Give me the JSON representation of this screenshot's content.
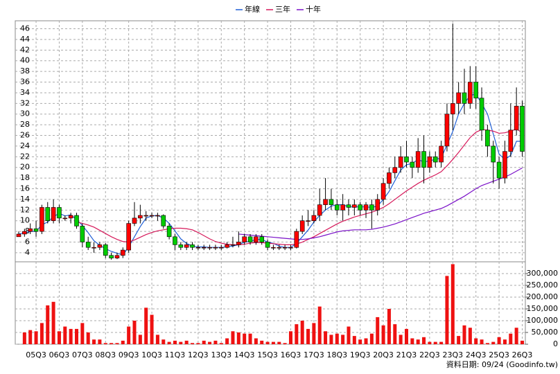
{
  "chart_data": {
    "type": "candlestick",
    "categories": [
      null,
      null,
      null,
      "05Q3",
      null,
      null,
      null,
      "06Q3",
      null,
      null,
      null,
      "07Q3",
      null,
      null,
      null,
      "08Q3",
      null,
      null,
      null,
      "09Q3",
      null,
      null,
      null,
      "10Q3",
      null,
      null,
      null,
      "11Q3",
      null,
      null,
      null,
      "12Q3",
      null,
      null,
      null,
      "13Q3",
      null,
      null,
      null,
      "14Q3",
      null,
      null,
      null,
      "15Q3",
      null,
      null,
      null,
      "16Q3",
      null,
      null,
      null,
      "17Q3",
      null,
      null,
      null,
      "18Q3",
      null,
      null,
      null,
      "19Q3",
      null,
      null,
      null,
      "20Q3",
      null,
      null,
      null,
      "21Q3",
      null,
      null,
      null,
      "22Q3",
      null,
      null,
      null,
      "23Q3",
      null,
      null,
      null,
      "24Q3",
      null,
      null,
      null,
      "25Q3",
      null,
      null,
      null,
      "26Q3"
    ],
    "open": [
      7,
      7.5,
      8,
      8.5,
      8,
      12.5,
      10,
      12.5,
      10.5,
      10.5,
      11,
      9,
      6,
      5,
      5,
      5.5,
      3.5,
      3,
      3.5,
      4.5,
      9.5,
      10.5,
      11,
      11,
      11,
      11,
      9,
      7,
      5.5,
      5,
      5.5,
      5,
      5,
      5,
      5,
      5,
      5,
      5.5,
      5.5,
      6,
      7,
      6,
      7,
      6,
      5,
      5,
      5,
      5,
      5,
      8,
      10,
      10,
      11,
      13,
      14,
      13,
      12,
      13,
      12.5,
      13,
      12,
      13,
      12,
      14,
      17,
      19,
      20,
      22,
      21,
      20,
      23,
      20,
      22,
      21,
      24,
      30,
      32,
      34,
      32,
      36,
      33,
      27,
      24,
      21,
      18,
      23,
      27,
      31.5
    ],
    "high": [
      8,
      8.5,
      9.5,
      10,
      13,
      13.5,
      14,
      13,
      11,
      11.5,
      11.5,
      9.5,
      7,
      6,
      6,
      5.8,
      4,
      4,
      5,
      10,
      13.5,
      13,
      11.8,
      11.5,
      11.5,
      11.2,
      9.5,
      7.5,
      6,
      6,
      6,
      5.5,
      5.5,
      5.5,
      5.5,
      5.5,
      6,
      7,
      8,
      7.5,
      7.5,
      7.5,
      7.5,
      6.5,
      5.5,
      5.5,
      5.5,
      5.5,
      8.5,
      11,
      12,
      12,
      16,
      18,
      16,
      14,
      15,
      14,
      14,
      13.5,
      13.5,
      14,
      15,
      18,
      20,
      22,
      24,
      25,
      22,
      25.5,
      26,
      23,
      23,
      25,
      32,
      47,
      36,
      38.5,
      39,
      39,
      35,
      28,
      25,
      22,
      25,
      32,
      35,
      32.5
    ],
    "low": [
      7,
      7,
      7.5,
      7,
      7.5,
      9.5,
      9.5,
      9.5,
      10,
      9.5,
      8.5,
      5,
      4.5,
      4,
      4.5,
      3,
      2.7,
      2.8,
      3,
      4,
      9,
      9.5,
      10,
      10.5,
      10,
      8.5,
      6.5,
      4.5,
      4.5,
      4.5,
      4.5,
      4.5,
      4.5,
      4.5,
      4.5,
      4.5,
      4.8,
      5,
      5,
      5.5,
      5.5,
      5.5,
      5.5,
      4.5,
      4.5,
      4.5,
      4.5,
      4.5,
      4.8,
      7.5,
      9,
      9.5,
      10,
      12,
      12,
      11,
      10,
      11,
      11,
      11,
      10.5,
      8.5,
      11,
      13,
      16,
      18,
      19,
      20,
      18,
      19,
      17,
      19,
      20,
      20,
      23,
      27,
      30,
      30,
      31,
      31,
      25,
      22,
      17,
      16,
      17,
      22,
      26,
      22
    ],
    "close": [
      7.5,
      8,
      8.5,
      8,
      12.5,
      10,
      12.5,
      10.5,
      10.5,
      11,
      9,
      6,
      5,
      5,
      5.5,
      3.5,
      3,
      3.5,
      4.5,
      9.5,
      10.5,
      11,
      11,
      11,
      11,
      9,
      7,
      5.5,
      5,
      5.5,
      5,
      5,
      5,
      5,
      5,
      5,
      5.5,
      5.5,
      6,
      7,
      6,
      7,
      6,
      5,
      5,
      5,
      5,
      5,
      8,
      10,
      10,
      11,
      13,
      14,
      13,
      12,
      13,
      12.5,
      13,
      12,
      13,
      12,
      14,
      17,
      19,
      20,
      22,
      21,
      20,
      23,
      20,
      22,
      21,
      24,
      30,
      32,
      34,
      32,
      36,
      33,
      27,
      24,
      21,
      18,
      23,
      27,
      31.5,
      23
    ],
    "up_color": "#ff0000",
    "down_color": "#00cc00",
    "ylim": [
      2.3,
      47.5
    ],
    "yticks": [
      4,
      6,
      8,
      10,
      12,
      14,
      16,
      18,
      20,
      22,
      24,
      26,
      28,
      30,
      32,
      34,
      36,
      38,
      40,
      42,
      44,
      46
    ],
    "grid": true,
    "series": [
      {
        "name": "年線",
        "color": "#1f5fd6",
        "values": [
          7.5,
          7.75,
          8,
          8,
          9.25,
          9.75,
          10.75,
          11.4,
          10.9,
          11.1,
          10.25,
          9.1,
          7.75,
          6.25,
          5.4,
          4.75,
          4.25,
          3.9,
          3.6,
          5.1,
          7,
          8.9,
          10.5,
          10.9,
          11,
          10.5,
          9.5,
          8.1,
          6.6,
          5.75,
          5.25,
          5.1,
          5.1,
          5,
          5,
          5,
          5.1,
          5.25,
          5.5,
          6,
          6.1,
          6.5,
          6.5,
          6,
          5.75,
          5.25,
          5,
          5,
          5.75,
          7,
          8.25,
          9.75,
          11,
          12,
          12.75,
          13,
          13,
          12.6,
          12.6,
          12.6,
          12.6,
          12.5,
          12.75,
          14,
          15.5,
          17.5,
          19.5,
          20.5,
          20.75,
          21.5,
          21,
          21.25,
          21.5,
          21.75,
          24.25,
          26.75,
          30,
          32,
          33.5,
          33.75,
          32,
          30,
          26.25,
          22.5,
          21.5,
          22.25,
          24.9,
          24.9
        ]
      },
      {
        "name": "三年",
        "color": "#d6195a",
        "values": [
          null,
          null,
          null,
          null,
          null,
          null,
          null,
          null,
          null,
          null,
          9.8,
          9.5,
          9.2,
          8.8,
          8.2,
          7.6,
          7,
          6.5,
          6.1,
          6,
          6.4,
          6.9,
          7.4,
          7.8,
          8.1,
          8.3,
          8.5,
          8.6,
          8.6,
          8.5,
          8.3,
          7.8,
          7.2,
          6.6,
          6.1,
          5.8,
          5.6,
          5.5,
          5.5,
          5.6,
          5.8,
          5.9,
          5.9,
          5.8,
          5.7,
          5.6,
          5.5,
          5.5,
          5.6,
          6,
          6.5,
          7,
          7.6,
          8.2,
          8.8,
          9.4,
          9.9,
          10.3,
          10.7,
          11,
          11.3,
          11.6,
          12,
          12.5,
          13.2,
          14,
          14.8,
          15.6,
          16.3,
          17,
          17.6,
          18.1,
          18.6,
          19.2,
          20.3,
          21.5,
          22.8,
          24.2,
          25.6,
          26.6,
          27.1,
          27,
          26.8,
          26.4,
          26.5,
          26.8,
          27.2,
          26.5
        ]
      },
      {
        "name": "十年",
        "color": "#7a10c8",
        "values": [
          null,
          null,
          null,
          null,
          null,
          null,
          null,
          null,
          null,
          null,
          null,
          null,
          null,
          null,
          null,
          null,
          null,
          null,
          null,
          null,
          null,
          null,
          null,
          null,
          null,
          null,
          null,
          null,
          null,
          null,
          null,
          null,
          null,
          null,
          null,
          null,
          null,
          null,
          7.5,
          7.4,
          7.3,
          7.2,
          7.1,
          7,
          6.9,
          6.8,
          6.7,
          6.6,
          6.5,
          6.5,
          6.6,
          6.8,
          7,
          7.3,
          7.6,
          7.9,
          8.1,
          8.2,
          8.3,
          8.3,
          8.3,
          8.4,
          8.6,
          8.8,
          9.1,
          9.4,
          9.8,
          10.2,
          10.6,
          11,
          11.4,
          11.7,
          12,
          12.3,
          12.8,
          13.4,
          14,
          14.6,
          15.3,
          16,
          16.6,
          17,
          17.4,
          17.8,
          18.2,
          18.7,
          19.3,
          19.9
        ]
      }
    ],
    "volume": {
      "color": "#ee1111",
      "values": [
        0,
        50000,
        60000,
        55000,
        90000,
        165000,
        180000,
        55000,
        75000,
        65000,
        65000,
        90000,
        50000,
        20000,
        20000,
        5000,
        5000,
        5000,
        15000,
        75000,
        100000,
        40000,
        155000,
        125000,
        40000,
        20000,
        10000,
        15000,
        10000,
        15000,
        5000,
        5000,
        15000,
        10000,
        15000,
        5000,
        25000,
        55000,
        50000,
        45000,
        45000,
        25000,
        15000,
        10000,
        10000,
        10000,
        5000,
        55000,
        85000,
        100000,
        65000,
        90000,
        160000,
        55000,
        40000,
        45000,
        40000,
        75000,
        35000,
        20000,
        25000,
        45000,
        115000,
        80000,
        150000,
        85000,
        40000,
        65000,
        25000,
        20000,
        30000,
        10000,
        10000,
        10000,
        290000,
        340000,
        35000,
        80000,
        70000,
        25000,
        20000,
        5000,
        10000,
        30000,
        20000,
        45000,
        70000,
        15000
      ],
      "ylim": [
        0,
        350000
      ],
      "yticks": [
        0,
        {
          "value": 50000,
          "label": "50,000"
        },
        {
          "value": 100000,
          "label": "100,000"
        },
        {
          "value": 150000,
          "label": "150,000"
        },
        {
          "value": 200000,
          "label": "200,000"
        },
        {
          "value": 250000,
          "label": "250,000"
        },
        {
          "value": 300000,
          "label": "300,000"
        }
      ]
    },
    "annotation": "資料日期: 09/24  (Goodinfo.tw)"
  }
}
